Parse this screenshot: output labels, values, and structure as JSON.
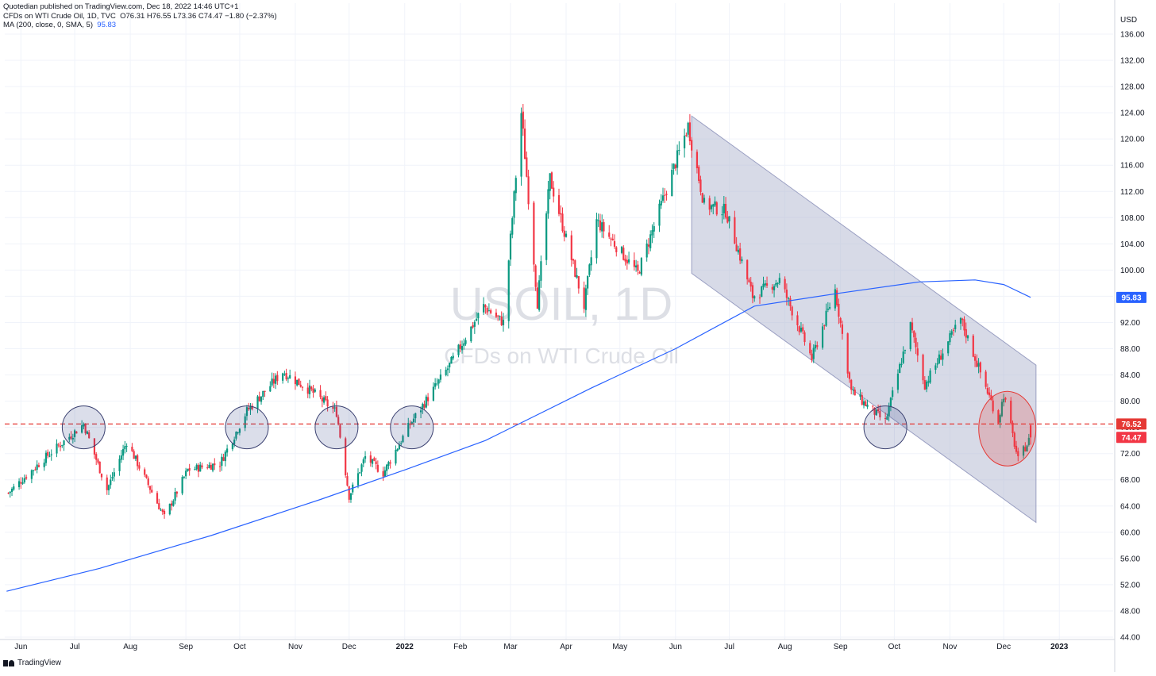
{
  "header": {
    "line1": "Quotedian published on TradingView.com, Dec 18, 2022 14:46 UTC+1",
    "instrument": "CFDs on WTI Crude Oil, 1D, TVC",
    "ohlc": "O76.31  H76.55  L73.36  C74.47  −1.80 (−2.37%)",
    "ma_label": "MA (200, close, 0, SMA, 5)",
    "ma_value": "95.83"
  },
  "watermark": {
    "symbol": "USOIL, 1D",
    "name": "CFDs on WTI Crude Oil"
  },
  "footer": {
    "brand": "TradingView"
  },
  "price_axis": {
    "currency": "USD",
    "ticks": [
      "136.00",
      "132.00",
      "128.00",
      "124.00",
      "120.00",
      "116.00",
      "112.00",
      "108.00",
      "104.00",
      "100.00",
      "96.00",
      "92.00",
      "88.00",
      "84.00",
      "80.00",
      "76.00",
      "72.00",
      "68.00",
      "64.00",
      "60.00",
      "56.00",
      "52.00",
      "48.00",
      "44.00"
    ]
  },
  "badges": [
    {
      "label": "95.83",
      "value": 95.83,
      "color": "#2962ff"
    },
    {
      "label": "76.52",
      "value": 76.52,
      "color": "#e53935"
    },
    {
      "label": "74.47",
      "value": 74.47,
      "color": "#f23645"
    }
  ],
  "chart_data": {
    "type": "candlestick",
    "title": "USOIL, 1D",
    "subtitle": "CFDs on WTI Crude Oil",
    "ylabel": "USD",
    "ylim": [
      44,
      136
    ],
    "x_ticks": [
      "Jun",
      "Jul",
      "Aug",
      "Sep",
      "Oct",
      "Nov",
      "Dec",
      "2022",
      "Feb",
      "Mar",
      "Apr",
      "May",
      "Jun",
      "Jul",
      "Aug",
      "Sep",
      "Oct",
      "Nov",
      "Dec",
      "2023"
    ],
    "x_tick_dates": [
      "2021-06-01",
      "2021-07-01",
      "2021-08-01",
      "2021-09-01",
      "2021-10-01",
      "2021-11-01",
      "2021-12-01",
      "2022-01-01",
      "2022-02-01",
      "2022-03-01",
      "2022-04-01",
      "2022-05-01",
      "2022-06-01",
      "2022-07-01",
      "2022-08-01",
      "2022-09-01",
      "2022-10-01",
      "2022-11-01",
      "2022-12-01",
      "2023-01-01"
    ],
    "colors": {
      "up": "#089981",
      "down": "#f23645",
      "ma": "#2962ff",
      "channel": "#b7bbd4",
      "support": "#e53935",
      "circle": "#3a4070",
      "highlight": "#e53935"
    },
    "last_ohlc": {
      "open": 76.31,
      "high": 76.55,
      "low": 73.36,
      "close": 74.47,
      "change": -1.8,
      "change_pct": -2.37
    },
    "anchors": [
      {
        "date": "2021-05-25",
        "close": 66.0
      },
      {
        "date": "2021-06-15",
        "close": 71.5
      },
      {
        "date": "2021-07-06",
        "close": 76.5
      },
      {
        "date": "2021-07-19",
        "close": 66.5
      },
      {
        "date": "2021-07-30",
        "close": 73.8
      },
      {
        "date": "2021-08-20",
        "close": 62.3
      },
      {
        "date": "2021-09-02",
        "close": 69.5
      },
      {
        "date": "2021-09-20",
        "close": 70.5
      },
      {
        "date": "2021-10-05",
        "close": 78.5
      },
      {
        "date": "2021-10-25",
        "close": 84.5
      },
      {
        "date": "2021-11-10",
        "close": 81.5
      },
      {
        "date": "2021-11-24",
        "close": 78.3
      },
      {
        "date": "2021-12-01",
        "close": 65.5
      },
      {
        "date": "2021-12-10",
        "close": 71.5
      },
      {
        "date": "2021-12-20",
        "close": 69.0
      },
      {
        "date": "2022-01-04",
        "close": 76.5
      },
      {
        "date": "2022-01-25",
        "close": 85.0
      },
      {
        "date": "2022-02-14",
        "close": 94.5
      },
      {
        "date": "2022-02-25",
        "close": 92.0
      },
      {
        "date": "2022-03-07",
        "close": 124.0
      },
      {
        "date": "2022-03-16",
        "close": 95.0
      },
      {
        "date": "2022-03-23",
        "close": 114.0
      },
      {
        "date": "2022-04-11",
        "close": 94.5
      },
      {
        "date": "2022-04-18",
        "close": 107.5
      },
      {
        "date": "2022-05-11",
        "close": 99.5
      },
      {
        "date": "2022-06-08",
        "close": 122.0
      },
      {
        "date": "2022-06-17",
        "close": 110.0
      },
      {
        "date": "2022-06-29",
        "close": 109.0
      },
      {
        "date": "2022-07-14",
        "close": 96.0
      },
      {
        "date": "2022-07-29",
        "close": 98.5
      },
      {
        "date": "2022-08-16",
        "close": 86.5
      },
      {
        "date": "2022-08-29",
        "close": 97.0
      },
      {
        "date": "2022-09-07",
        "close": 81.5
      },
      {
        "date": "2022-09-26",
        "close": 76.8
      },
      {
        "date": "2022-10-10",
        "close": 91.5
      },
      {
        "date": "2022-10-18",
        "close": 82.5
      },
      {
        "date": "2022-11-07",
        "close": 92.5
      },
      {
        "date": "2022-11-28",
        "close": 77.0
      },
      {
        "date": "2022-12-01",
        "close": 81.0
      },
      {
        "date": "2022-12-09",
        "close": 71.0
      },
      {
        "date": "2022-12-16",
        "close": 74.47
      }
    ],
    "ma200": [
      {
        "date": "2021-05-24",
        "value": 51.0
      },
      {
        "date": "2021-07-15",
        "value": 54.5
      },
      {
        "date": "2021-09-15",
        "value": 59.5
      },
      {
        "date": "2021-11-15",
        "value": 65.0
      },
      {
        "date": "2022-01-01",
        "value": 69.5
      },
      {
        "date": "2022-02-15",
        "value": 74.0
      },
      {
        "date": "2022-04-15",
        "value": 82.0
      },
      {
        "date": "2022-06-01",
        "value": 88.0
      },
      {
        "date": "2022-07-15",
        "value": 94.5
      },
      {
        "date": "2022-09-01",
        "value": 96.5
      },
      {
        "date": "2022-10-15",
        "value": 98.2
      },
      {
        "date": "2022-11-15",
        "value": 98.5
      },
      {
        "date": "2022-12-01",
        "value": 97.8
      },
      {
        "date": "2022-12-16",
        "value": 95.83
      }
    ],
    "support_level": 76.52,
    "channel": {
      "upper": [
        {
          "date": "2022-06-10",
          "value": 123.5
        },
        {
          "date": "2022-12-19",
          "value": 85.5
        }
      ],
      "lower": [
        {
          "date": "2022-06-10",
          "value": 99.5
        },
        {
          "date": "2022-12-19",
          "value": 61.5
        }
      ]
    },
    "circles": [
      {
        "date": "2021-07-06",
        "price": 76.0
      },
      {
        "date": "2021-10-05",
        "price": 76.0
      },
      {
        "date": "2021-11-24",
        "price": 76.0
      },
      {
        "date": "2022-01-05",
        "price": 76.0
      },
      {
        "date": "2022-09-26",
        "price": 76.0
      }
    ],
    "highlight_ellipse": {
      "date": "2022-12-03",
      "price": 75.8
    }
  }
}
